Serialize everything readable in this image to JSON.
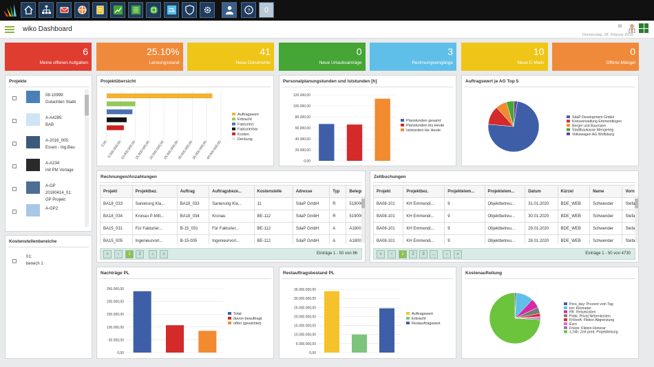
{
  "app": {
    "title": "wiko Dashboard",
    "user_short": "BI",
    "date": "Donnerstag, 28. Februar 2019"
  },
  "colors": {
    "topbar": "#111111",
    "tile_red": "#e03d31",
    "tile_orange": "#f08a3b",
    "tile_yellow": "#efc517",
    "tile_green": "#45a535",
    "tile_blue": "#5fbfe8"
  },
  "toolbar": {
    "icons": [
      "home-icon",
      "org-chart-icon",
      "mail-icon",
      "globe-icon",
      "document-icon",
      "chart-icon",
      "list-icon",
      "box-icon",
      "truck-icon",
      "shield-icon",
      "gear-icon",
      "user-icon",
      "help-icon"
    ],
    "badge": "0"
  },
  "tiles": [
    {
      "value": "6",
      "label": "Meine offenen Aufgaben",
      "color": "#e03d31"
    },
    {
      "value": "25.10%",
      "label": "Leistungsstand",
      "color": "#f08a3b"
    },
    {
      "value": "41",
      "label": "Neue Dokumente",
      "color": "#efc517"
    },
    {
      "value": "0",
      "label": "Neue Urlaubsanträge",
      "color": "#45a535"
    },
    {
      "value": "3",
      "label": "Rechnungseingänge",
      "color": "#5fbfe8"
    },
    {
      "value": "10",
      "label": "Neue E-Mails",
      "color": "#efc517"
    },
    {
      "value": "0",
      "label": "Offene Mängel",
      "color": "#f08a3b"
    }
  ],
  "projekte": {
    "title": "Projekte",
    "items": [
      {
        "line1": "08-10999:",
        "line2": "Gutachten Statik"
      },
      {
        "line1": "A-A4285:",
        "line2": "BAB"
      },
      {
        "line1": "A-2016_005:",
        "line2": "Essen - Ing.Bau"
      },
      {
        "line1": "A-A234:",
        "line2": "mit PM Vorlage"
      },
      {
        "line1": "A-GP 20180414_01:",
        "line2": "GP Projekt"
      },
      {
        "line1": "A-GP2:",
        "line2": ""
      }
    ]
  },
  "kostenstellen": {
    "title": "Kostenstellenbereiche",
    "items": [
      {
        "line1": "01:",
        "line2": "bereich 1"
      }
    ]
  },
  "charts": {
    "projektuebersicht": {
      "title": "Projektübersicht",
      "type": "bar",
      "categories": [
        "Auftragswert",
        "Erbracht",
        "Fakturiert",
        "Fakturierbar",
        "Kosten",
        "Deckung"
      ],
      "colors": [
        "#f2b233",
        "#95c85a",
        "#4a72b0",
        "#111111",
        "#cc2222",
        "#e8e8e8"
      ],
      "values": [
        37000000,
        10000000,
        9000000,
        7000000,
        6000000,
        0
      ],
      "ticks": [
        "0,00",
        "5.000.000,00",
        "10.000.000,00",
        "15.000.000,00",
        "20.000.000,00",
        "25.000.000,00",
        "30.000.000,00",
        "35.000.000,00",
        "40.000.000,00"
      ],
      "xlim": [
        0,
        40000000
      ]
    },
    "personalplanung": {
      "title": "Personalplanungstunden und Iststunden [h]",
      "type": "bar",
      "categories": [
        "Planstunden gesamt",
        "Planstunden bis Heute",
        "Iststunden bis Heute"
      ],
      "colors": [
        "#3e5fa8",
        "#d42a2a",
        "#f28a30"
      ],
      "values": [
        67000,
        66000,
        113000
      ],
      "ticks": [
        "0,00",
        "20.000,00",
        "40.000,00",
        "60.000,00",
        "80.000,00",
        "100.000,00",
        "120.000,00"
      ],
      "ylim": [
        0,
        120000
      ]
    },
    "auftragswert": {
      "title": "Auftragswert je AG Top 5",
      "type": "pie",
      "legend": [
        "SdaP Development GmbH",
        "Kreisverwaltung Emmendingen",
        "Berger und Baumann",
        "Stadtbaukasse Mengering",
        "Volkswagen AG Wolfsburg"
      ],
      "colors": [
        "#3e5fa8",
        "#d42a2a",
        "#f28a30",
        "#45a535",
        "#6a3d9a"
      ],
      "values": [
        74,
        12,
        7,
        5,
        2
      ]
    },
    "nachtraege": {
      "title": "Nachträge PL",
      "type": "bar",
      "categories": [
        "Total",
        "davon beauftragt",
        "offen (gewichtet)"
      ],
      "colors": [
        "#3e5fa8",
        "#d42a2a",
        "#f28a30"
      ],
      "values": [
        240000,
        107000,
        85000
      ],
      "ticks": [
        "0,00",
        "50.000,00",
        "100.000,00",
        "150.000,00",
        "200.000,00",
        "250.000,00"
      ],
      "ylim": [
        0,
        250000
      ]
    },
    "restauftrag": {
      "title": "Restauftragsbestand PL",
      "type": "bar",
      "categories": [
        "Auftragswert",
        "Erbracht",
        "Restauftragswert"
      ],
      "colors": [
        "#f5c22b",
        "#7cc47c",
        "#3e5fa8"
      ],
      "values": [
        34000000,
        10000000,
        24500000
      ],
      "ticks": [
        "0,00",
        "5.000.000,00",
        "10.000.000,00",
        "15.000.000,00",
        "20.000.000,00",
        "25.000.000,00",
        "30.000.000,00",
        "35.000.000,00"
      ],
      "ylim": [
        0,
        35000000
      ]
    },
    "kostenaufteilung": {
      "title": "Kostenaufteilung",
      "type": "pie",
      "legend": [
        "Pers_day: Prozent vom Tag",
        "km: Kilometer",
        "RK: Reisekosten",
        "Pnbk: Privat Nebenkosten",
        "FrHonA: Fiktion Abgrenzung",
        "Euro",
        "FrHon: Fiktion Honorar",
        "1.24h: Zeit pred. Projektleitung"
      ],
      "colors": [
        "#3e5fa8",
        "#5fbfe8",
        "#d42aa8",
        "#7a7a7a",
        "#d42a2a",
        "#e06ac4",
        "#9b6bc4",
        "#6cc43c"
      ],
      "values": [
        1,
        11,
        6,
        4,
        2,
        1,
        1,
        74
      ]
    }
  },
  "rechnungen": {
    "title": "Rechnungen/Anzahlungen",
    "columns": [
      "Projekt",
      "Projektbez.",
      "Auftrag",
      "Auftragsbeze...",
      "Kostenstelle",
      "Adresse",
      "Typ",
      "Belegnu"
    ],
    "rows": [
      [
        "BA18_033",
        "Sanierung Kla...",
        "BA18_033",
        "Sanierung Kla...",
        "11",
        "SdaP GmbH",
        "R",
        "5190002"
      ],
      [
        "BA18_034",
        "Kronau P-Mitt...",
        "BA18_034",
        "Kronau",
        "BE-112",
        "SdaP GmbH",
        "R",
        "5190003"
      ],
      [
        "BA15_031",
        "Für Fakturier...",
        "B-15_031",
        "Für Fakturier...",
        "BE-112",
        "SdaP GmbH",
        "A",
        "A180013"
      ],
      [
        "BA15_005",
        "Ingenieurvorl...",
        "B-15-005",
        "Ingenieurvorl...",
        "BE-112",
        "SdaP GmbH",
        "A",
        "A180013"
      ]
    ],
    "pages": [
      "1",
      "2"
    ],
    "info": "Einträge 1 - 50 von 86"
  },
  "zeitbuchungen": {
    "title": "Zeitbuchungen",
    "columns": [
      "Projekt",
      "Projektbez.",
      "Projektelem...",
      "Projektelem...",
      "Datum",
      "Kürzel",
      "Name",
      "Vornam"
    ],
    "rows": [
      [
        "BA08-101",
        "KH Emmendi...",
        "9",
        "Objektbetreu...",
        "31.01.2020",
        "BDE_WEB",
        "Schwender",
        "Stefan"
      ],
      [
        "BA08-101",
        "KH Emmendi...",
        "9",
        "Objektbetreu...",
        "30.01.2020",
        "BDE_WEB",
        "Schwender",
        "Stefan"
      ],
      [
        "BA08-101",
        "KH Emmendi...",
        "9",
        "Objektbetreu...",
        "29.01.2020",
        "BDE_WEB",
        "Schwender",
        "Stefan"
      ],
      [
        "BA08-101",
        "KH Emmendi...",
        "9",
        "Objektbetreu...",
        "28.01.2020",
        "BDE_WEB",
        "Schwender",
        "Stefan"
      ]
    ],
    "pages": [
      "1",
      "2",
      "3",
      "..."
    ],
    "info": "Einträge 1 - 50 von 4730"
  }
}
